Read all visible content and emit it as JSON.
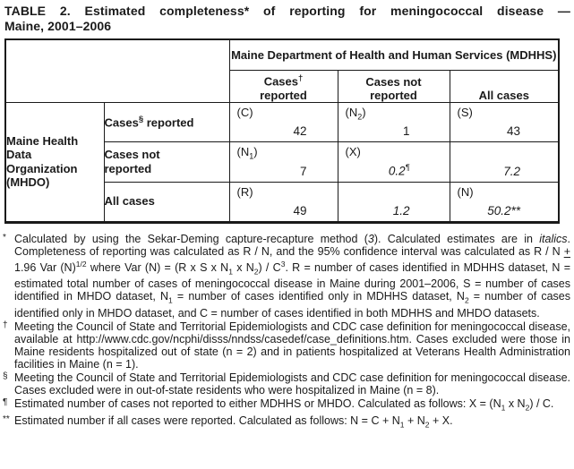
{
  "colors": {
    "background": "#ffffff",
    "text": "#1a1a1a",
    "border": "#1a1a1a"
  },
  "title": {
    "line1": "TABLE 2. Estimated completeness* of reporting for meningococcal disease —",
    "line2": "Maine, 2001–2006"
  },
  "table": {
    "span_header": "Maine Department of Health and Human Services (MDHHS)",
    "columns": [
      {
        "label_html": "Cases<sup>†</sup><br>reported"
      },
      {
        "label_html": "Cases not<br>reported"
      },
      {
        "label_html": "All cases"
      }
    ],
    "row_group_label": "Maine Health Data Organization (MHDO)",
    "rows": [
      {
        "label_html": "Cases<sup>§</sup> reported",
        "cells": [
          {
            "tag_html": "(C)",
            "value_html": "42"
          },
          {
            "tag_html": "(N<sub>2</sub>)",
            "value_html": "1"
          },
          {
            "tag_html": "(S)",
            "value_html": "43"
          }
        ]
      },
      {
        "label_html": "Cases not<br>reported",
        "cells": [
          {
            "tag_html": "(N<sub>1</sub>)",
            "value_html": "7"
          },
          {
            "tag_html": "(X)",
            "value_html": "0.2<sup>¶</sup>"
          },
          {
            "tag_html": "",
            "value_html": "7.2"
          }
        ]
      },
      {
        "label_html": "All cases",
        "cells": [
          {
            "tag_html": "(R)",
            "value_html": "49"
          },
          {
            "tag_html": "",
            "value_html": "1.2"
          },
          {
            "tag_html": "(N)",
            "value_html": "50.2**"
          }
        ]
      }
    ]
  },
  "footnotes": [
    {
      "marker": "*",
      "text_html": "Calculated by using the Sekar-Deming capture-recapture method (<i>3</i>). Calculated estimates are in <i>italics</i>. Completeness of reporting was calculated as R / N, and the 95% confidence interval was calculated as R / N <u>+</u> 1.96 Var (N)<sup>1/2</sup> where Var (N) = (R x S x N<sub>1</sub> x N<sub>2</sub>) / C<sup>3</sup>. R = number of cases identified in MDHHS dataset, N = estimated total number of cases of meningococcal disease in Maine during 2001–2006, S = number of cases identified in MHDO dataset, N<sub>1</sub> = number of cases identified only in MDHHS dataset, N<sub>2</sub> = number of cases identified only in MHDO dataset, and C = number of cases identified in both MDHHS and MHDO datasets."
    },
    {
      "marker": "†",
      "text_html": "Meeting the Council of State and Territorial Epidemiologists and CDC case definition for meningococcal disease, available at http://www.cdc.gov/ncphi/disss/nndss/casedef/case_definitions.htm. Cases excluded were those in Maine residents hospitalized out of state (n = 2) and in patients hospitalized at Veterans Health Administration facilities in Maine (n = 1)."
    },
    {
      "marker": "§",
      "text_html": "Meeting the Council of State and Territorial Epidemiologists and CDC case definition for meningococcal disease. Cases excluded were in out-of-state residents who were hospitalized in Maine (n = 8)."
    },
    {
      "marker": "¶",
      "text_html": "Estimated number of cases not reported to either MDHHS or MHDO. Calculated as follows: X = (N<sub>1</sub> x N<sub>2</sub>) / C."
    },
    {
      "marker": "**",
      "text_html": "Estimated number if all cases were reported. Calculated as follows: N = C + N<sub>1</sub> + N<sub>2</sub> + X."
    }
  ]
}
